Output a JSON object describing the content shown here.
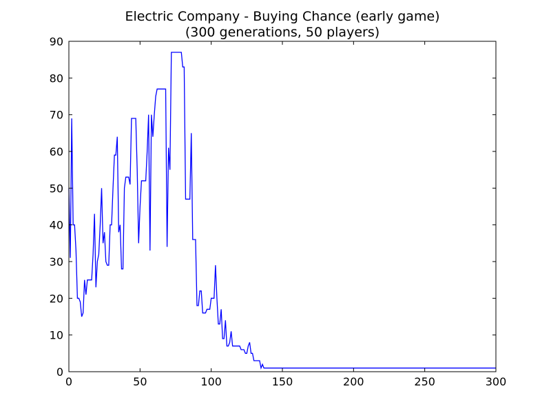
{
  "chart_data": {
    "type": "line",
    "title": "Electric Company - Buying Chance (early game)",
    "subtitle": "(300 generations, 50 players)",
    "xlabel": "",
    "ylabel": "",
    "xlim": [
      0,
      300
    ],
    "ylim": [
      0,
      90
    ],
    "xticks": [
      0,
      50,
      100,
      150,
      200,
      250,
      300
    ],
    "yticks": [
      0,
      10,
      20,
      30,
      40,
      50,
      60,
      70,
      80,
      90
    ],
    "grid": false,
    "series": [
      {
        "color": "#0000ff",
        "x": [
          0,
          1,
          2,
          3,
          4,
          5,
          6,
          7,
          8,
          9,
          10,
          11,
          12,
          13,
          14,
          15,
          16,
          17,
          18,
          19,
          20,
          21,
          22,
          23,
          24,
          25,
          26,
          27,
          28,
          29,
          30,
          31,
          32,
          33,
          34,
          35,
          36,
          37,
          38,
          39,
          40,
          41,
          42,
          43,
          44,
          45,
          46,
          47,
          48,
          49,
          50,
          51,
          52,
          53,
          54,
          55,
          56,
          57,
          58,
          59,
          60,
          61,
          62,
          63,
          64,
          65,
          66,
          67,
          68,
          69,
          70,
          71,
          72,
          73,
          74,
          75,
          76,
          77,
          78,
          79,
          80,
          81,
          82,
          83,
          84,
          85,
          86,
          87,
          88,
          89,
          90,
          91,
          92,
          93,
          94,
          95,
          96,
          97,
          98,
          99,
          100,
          101,
          102,
          103,
          104,
          105,
          106,
          107,
          108,
          109,
          110,
          111,
          112,
          113,
          114,
          115,
          116,
          117,
          118,
          119,
          120,
          121,
          122,
          123,
          124,
          125,
          126,
          127,
          128,
          129,
          130,
          131,
          132,
          133,
          134,
          135,
          136,
          137,
          140,
          150,
          200,
          250,
          300
        ],
        "y": [
          50,
          31,
          69,
          40,
          40,
          33,
          20,
          20,
          19,
          15,
          16,
          25,
          21,
          25,
          25,
          25,
          25,
          32,
          43,
          23,
          30,
          32,
          40,
          50,
          35,
          38,
          30,
          29,
          29,
          40,
          40,
          50,
          59,
          59,
          64,
          38,
          40,
          28,
          28,
          50,
          53,
          53,
          53,
          51,
          69,
          69,
          69,
          69,
          55,
          35,
          45,
          52,
          52,
          52,
          52,
          60,
          70,
          33,
          70,
          64,
          70,
          75,
          77,
          77,
          77,
          77,
          77,
          77,
          77,
          34,
          61,
          55,
          87,
          87,
          87,
          87,
          87,
          87,
          87,
          87,
          83,
          83,
          47,
          47,
          47,
          47,
          65,
          36,
          36,
          36,
          18,
          18,
          22,
          22,
          16,
          16,
          16,
          17,
          17,
          17,
          20,
          20,
          20,
          29,
          20,
          13,
          13,
          17,
          9,
          9,
          14,
          7,
          7,
          8,
          11,
          7,
          7,
          7,
          7,
          7,
          7,
          6,
          6,
          6,
          5,
          5,
          7,
          8,
          5,
          5,
          3,
          3,
          3,
          3,
          3,
          1,
          2,
          1,
          1,
          1,
          1,
          1,
          1
        ]
      }
    ]
  }
}
